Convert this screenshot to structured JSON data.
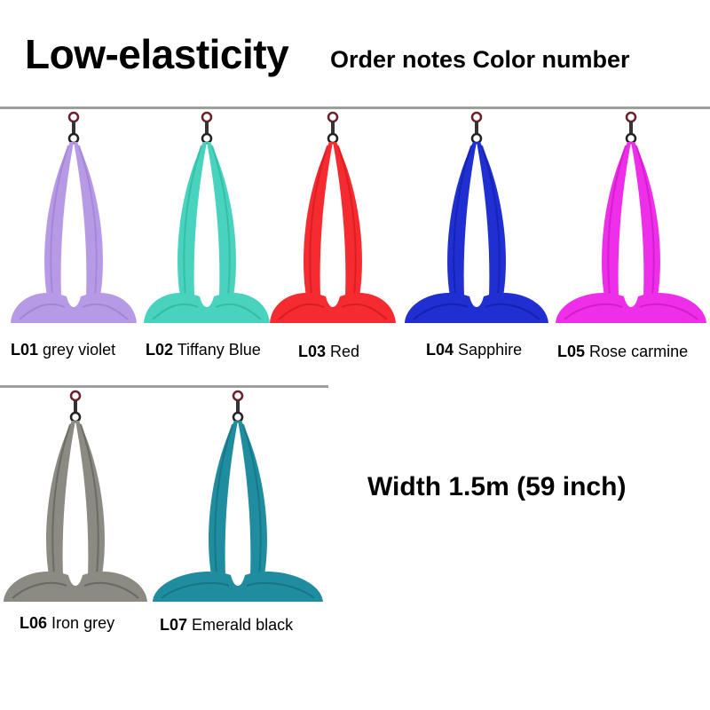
{
  "header": {
    "title": "Low-elasticity",
    "subtitle": "Order notes Color number"
  },
  "items": [
    {
      "code": "L01",
      "name": "grey violet",
      "color": "#b79ae6",
      "shade": "#9d7fd3"
    },
    {
      "code": "L02",
      "name": "Tiffany Blue",
      "color": "#47d3bd",
      "shade": "#2fb6a0"
    },
    {
      "code": "L03",
      "name": "Red",
      "color": "#f62b2f",
      "shade": "#d11a1f"
    },
    {
      "code": "L04",
      "name": "Sapphire",
      "color": "#1f2fd2",
      "shade": "#121fa8"
    },
    {
      "code": "L05",
      "name": "Rose carmine",
      "color": "#ee2ee8",
      "shade": "#c81ac4"
    },
    {
      "code": "L06",
      "name": "Iron grey",
      "color": "#8b8a83",
      "shade": "#605f59"
    },
    {
      "code": "L07",
      "name": "Emerald black",
      "color": "#1f8c9f",
      "shade": "#12707f"
    }
  ],
  "width_note": "Width 1.5m (59 inch)"
}
